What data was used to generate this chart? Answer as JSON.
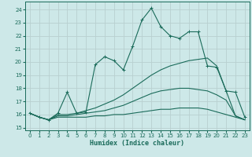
{
  "xlabel": "Humidex (Indice chaleur)",
  "bg_color": "#cde8e8",
  "grid_color": "#b8d0d0",
  "line_color": "#1a6b5a",
  "xlim": [
    -0.5,
    23.5
  ],
  "ylim": [
    14.8,
    24.6
  ],
  "yticks": [
    15,
    16,
    17,
    18,
    19,
    20,
    21,
    22,
    23,
    24
  ],
  "xticks": [
    0,
    1,
    2,
    3,
    4,
    5,
    6,
    7,
    8,
    9,
    10,
    11,
    12,
    13,
    14,
    15,
    16,
    17,
    18,
    19,
    20,
    21,
    22,
    23
  ],
  "line1_x": [
    0,
    1,
    2,
    3,
    4,
    5,
    6,
    7,
    8,
    9,
    10,
    11,
    12,
    13,
    14,
    15,
    16,
    17,
    18,
    19,
    20,
    21,
    22,
    23
  ],
  "line1_y": [
    16.1,
    15.8,
    15.6,
    16.1,
    17.7,
    16.1,
    16.2,
    19.8,
    20.4,
    20.1,
    19.4,
    21.2,
    23.2,
    24.1,
    22.7,
    22.0,
    21.8,
    22.3,
    22.3,
    19.7,
    19.6,
    17.8,
    17.7,
    15.8
  ],
  "line2_x": [
    0,
    1,
    2,
    3,
    4,
    5,
    6,
    7,
    8,
    9,
    10,
    11,
    12,
    13,
    14,
    15,
    16,
    17,
    18,
    19,
    20,
    21,
    22,
    23
  ],
  "line2_y": [
    16.1,
    15.8,
    15.6,
    16.0,
    16.0,
    16.1,
    16.3,
    16.5,
    16.8,
    17.1,
    17.5,
    18.0,
    18.5,
    19.0,
    19.4,
    19.7,
    19.9,
    20.1,
    20.2,
    20.3,
    19.7,
    17.8,
    15.9,
    15.6
  ],
  "line3_x": [
    0,
    1,
    2,
    3,
    4,
    5,
    6,
    7,
    8,
    9,
    10,
    11,
    12,
    13,
    14,
    15,
    16,
    17,
    18,
    19,
    20,
    21,
    22,
    23
  ],
  "line3_y": [
    16.1,
    15.8,
    15.6,
    15.9,
    15.9,
    16.0,
    16.1,
    16.2,
    16.3,
    16.5,
    16.7,
    17.0,
    17.3,
    17.6,
    17.8,
    17.9,
    18.0,
    18.0,
    17.9,
    17.8,
    17.5,
    17.1,
    15.9,
    15.6
  ],
  "line4_x": [
    0,
    1,
    2,
    3,
    4,
    5,
    6,
    7,
    8,
    9,
    10,
    11,
    12,
    13,
    14,
    15,
    16,
    17,
    18,
    19,
    20,
    21,
    22,
    23
  ],
  "line4_y": [
    16.1,
    15.8,
    15.6,
    15.8,
    15.8,
    15.8,
    15.8,
    15.9,
    15.9,
    16.0,
    16.0,
    16.1,
    16.2,
    16.3,
    16.4,
    16.4,
    16.5,
    16.5,
    16.5,
    16.4,
    16.2,
    16.0,
    15.8,
    15.6
  ]
}
